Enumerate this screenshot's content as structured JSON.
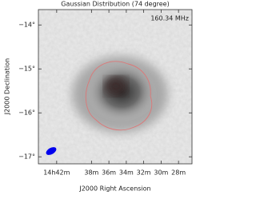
{
  "chart_data": {
    "type": "image",
    "title": "Gaussian Distribution (74 degree)",
    "annotation": "160.34 MHz",
    "xlabel": "J2000 Right Ascension",
    "ylabel": "J2000 Declination",
    "xlim": [
      44.1,
      26.45
    ],
    "xticks": [
      {
        "value": 42,
        "label": "14h42m"
      },
      {
        "value": 38,
        "label": "38m"
      },
      {
        "value": 36,
        "label": "36m"
      },
      {
        "value": 34,
        "label": "34m"
      },
      {
        "value": 32,
        "label": "32m"
      },
      {
        "value": 30,
        "label": "30m"
      },
      {
        "value": 28,
        "label": "28m"
      }
    ],
    "ylim": [
      -17.16,
      -13.65
    ],
    "yticks": [
      {
        "value": -14,
        "label": "−14°"
      },
      {
        "value": -15,
        "label": "−15°"
      },
      {
        "value": -16,
        "label": "−16°"
      },
      {
        "value": -17,
        "label": "−17°"
      }
    ]
  }
}
